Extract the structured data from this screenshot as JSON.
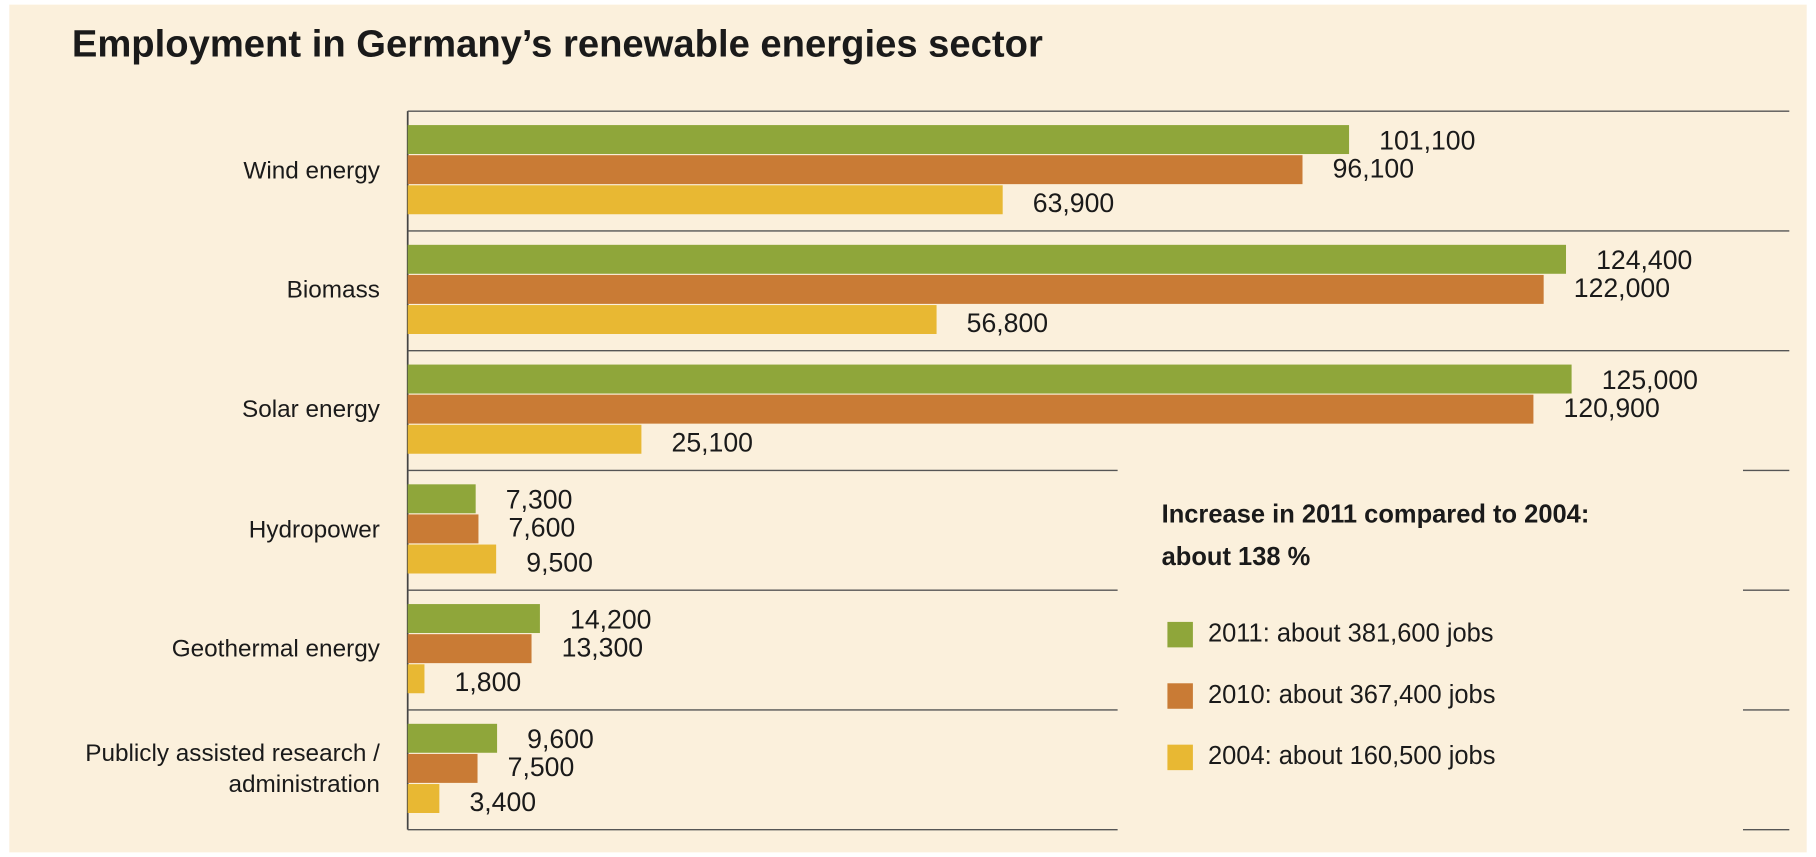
{
  "chart_data": {
    "type": "bar",
    "orientation": "horizontal",
    "title": "Employment in Germany’s renewable energies sector",
    "annotation": "Increase in 2011 compared to 2004: about 138 %",
    "categories": [
      "Wind energy",
      "Biomass",
      "Solar energy",
      "Hydropower",
      "Geothermal energy",
      "Publicly assisted research / administration"
    ],
    "series": [
      {
        "name": "2011: about 381,600 jobs",
        "color": "#8fa63a",
        "values": [
          101100,
          124400,
          125000,
          7300,
          14200,
          9600
        ],
        "value_labels": [
          "101,100",
          "124,400",
          "125,000",
          "7,300",
          "14,200",
          "9,600"
        ]
      },
      {
        "name": "2010: about 367,400 jobs",
        "color": "#c97b35",
        "values": [
          96100,
          122000,
          120900,
          7600,
          13300,
          7500
        ],
        "value_labels": [
          "96,100",
          "122,000",
          "120,900",
          "7,600",
          "13,300",
          "7,500"
        ]
      },
      {
        "name": "2004: about 160,500 jobs",
        "color": "#e8b833",
        "values": [
          63900,
          56800,
          25100,
          9500,
          1800,
          3400
        ],
        "value_labels": [
          "63,900",
          "56,800",
          "25,100",
          "9,500",
          "1,800",
          "3,400"
        ]
      }
    ],
    "xlim": [
      0,
      125000
    ],
    "legend": "right"
  }
}
